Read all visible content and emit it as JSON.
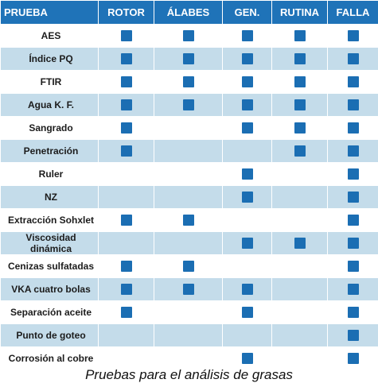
{
  "table": {
    "headers": [
      "PRUEBA",
      "ROTOR",
      "ÁLABES",
      "GEN.",
      "RUTINA",
      "FALLA"
    ],
    "rows": [
      {
        "label": "AES",
        "marks": [
          true,
          true,
          true,
          true,
          true
        ]
      },
      {
        "label": "Índice PQ",
        "marks": [
          true,
          true,
          true,
          true,
          true
        ]
      },
      {
        "label": "FTIR",
        "marks": [
          true,
          true,
          true,
          true,
          true
        ]
      },
      {
        "label": "Agua K. F.",
        "marks": [
          true,
          true,
          true,
          true,
          true
        ]
      },
      {
        "label": "Sangrado",
        "marks": [
          true,
          false,
          true,
          true,
          true
        ]
      },
      {
        "label": "Penetración",
        "marks": [
          true,
          false,
          false,
          true,
          true
        ]
      },
      {
        "label": "Ruler",
        "marks": [
          false,
          false,
          true,
          false,
          true
        ]
      },
      {
        "label": "NZ",
        "marks": [
          false,
          false,
          true,
          false,
          true
        ]
      },
      {
        "label": "Extracción Sohxlet",
        "marks": [
          true,
          true,
          false,
          false,
          true
        ]
      },
      {
        "label": "Viscosidad dinámica",
        "marks": [
          false,
          false,
          true,
          true,
          true
        ]
      },
      {
        "label": "Cenizas sulfatadas",
        "marks": [
          true,
          true,
          false,
          false,
          true
        ]
      },
      {
        "label": "VKA cuatro bolas",
        "marks": [
          true,
          true,
          true,
          false,
          true
        ]
      },
      {
        "label": "Separación aceite",
        "marks": [
          true,
          false,
          true,
          false,
          true
        ]
      },
      {
        "label": "Punto de goteo",
        "marks": [
          false,
          false,
          false,
          false,
          true
        ]
      },
      {
        "label": "Corrosión al cobre",
        "marks": [
          false,
          false,
          true,
          false,
          true
        ]
      }
    ]
  },
  "caption": "Pruebas para el análisis de grasas",
  "colors": {
    "header_bg": "#1f73b8",
    "row_alt_bg": "#c4dcea",
    "mark": "#1b6eb3"
  }
}
